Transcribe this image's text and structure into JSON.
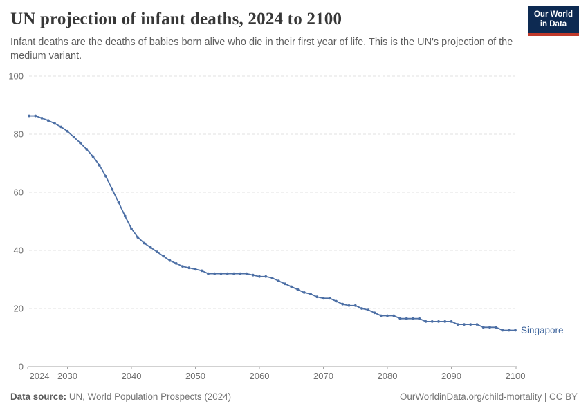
{
  "header": {
    "title": "UN projection of infant deaths, 2024 to 2100",
    "subtitle": "Infant deaths are the deaths of babies born alive who die in their first year of life. This is the UN's projection of the medium variant.",
    "logo": {
      "line1": "Our World",
      "line2": "in Data"
    }
  },
  "chart_data": {
    "type": "line",
    "title": "UN projection of infant deaths, 2024 to 2100",
    "xlabel": "",
    "ylabel": "",
    "x_range": [
      2024,
      2100
    ],
    "x_step": 1,
    "ylim": [
      0,
      100
    ],
    "yticks": [
      0,
      20,
      40,
      60,
      80,
      100
    ],
    "xticks": [
      2024,
      2030,
      2040,
      2050,
      2060,
      2070,
      2080,
      2090,
      2100
    ],
    "grid": true,
    "grid_style": "dashed",
    "legend_position": "end-of-line",
    "marker": "dot",
    "series": [
      {
        "name": "Singapore",
        "color": "#4c6fa5",
        "values": [
          86.3,
          86.3,
          85.5,
          84.7,
          83.7,
          82.5,
          81,
          79,
          77,
          74.8,
          72.3,
          69.3,
          65.5,
          61,
          56.5,
          51.8,
          47.5,
          44.5,
          42.5,
          41,
          39.5,
          38,
          36.5,
          35.5,
          34.5,
          34,
          33.5,
          33,
          32,
          32,
          32,
          32,
          32,
          32,
          32,
          31.5,
          31,
          31,
          30.5,
          29.5,
          28.5,
          27.5,
          26.5,
          25.5,
          25,
          24,
          23.5,
          23.5,
          22.5,
          21.5,
          21,
          21,
          20,
          19.5,
          18.5,
          17.5,
          17.5,
          17.5,
          16.5,
          16.5,
          16.5,
          16.5,
          15.5,
          15.5,
          15.5,
          15.5,
          15.5,
          14.5,
          14.5,
          14.5,
          14.5,
          13.5,
          13.5,
          13.5,
          12.5,
          12.5,
          12.5
        ]
      }
    ]
  },
  "footer": {
    "source_label": "Data source:",
    "source_text": " UN, World Population Prospects (2024)",
    "rights": "OurWorldinData.org/child-mortality | CC BY"
  },
  "colors": {
    "line": "#4c6fa5",
    "series_label": "#3d649c",
    "logo_navy": "#0d2a52",
    "logo_red": "#c0392b",
    "grid": "#e2e2e2",
    "axis": "#a3a3a3",
    "tick_text": "#6e6e6e"
  }
}
